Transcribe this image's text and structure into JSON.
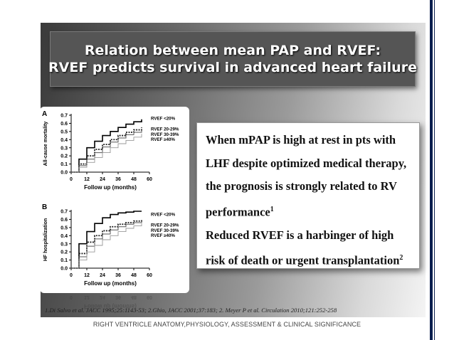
{
  "slide": {
    "title_line1": "Relation between mean PAP and RVEF:",
    "title_line2": "RVEF predicts survival in advanced heart failure",
    "body": [
      "When mPAP is high at rest in pts with",
      "LHF despite optimized medical therapy,",
      "the prognosis is strongly related to RV",
      "performance",
      "Reduced RVEF is a harbinger of high",
      "risk of death or urgent transplantation"
    ],
    "sup1": "1",
    "sup2": "2",
    "citation": "1.Di Salvo et al. JACC 1995;25:1143-53; 2.Ghio, JACC 2001;37:183; 2. Meyer P et al. Circulation 2010;121:252-258",
    "footer": "RIGHT VENTRICLE  ANATOMY,PHYSIOLOGY, ASSESSMENT & CLINICAL SIGNIFICANCE"
  },
  "colors": {
    "title_bg": "#555555",
    "rule": "#0b1e4e"
  },
  "chart_data": [
    {
      "type": "line",
      "panel": "A",
      "ylabel": "All-cause mortality",
      "xlabel": "",
      "yticks": [
        "0.0",
        "0.1",
        "0.2",
        "0.3",
        "0.4",
        "0.5",
        "0.6",
        "0.7"
      ],
      "xticks": [
        "0",
        "12",
        "24",
        "36",
        "48",
        "60"
      ],
      "ylim": [
        0,
        0.7
      ],
      "xlim": [
        0,
        60
      ],
      "series": [
        {
          "name": "RVEF <20%",
          "x": [
            0,
            6,
            12,
            18,
            24,
            30,
            36,
            42,
            48,
            54
          ],
          "y": [
            0,
            0.16,
            0.3,
            0.38,
            0.45,
            0.5,
            0.55,
            0.59,
            0.62,
            0.65
          ]
        },
        {
          "name": "RVEF 20-29%",
          "x": [
            0,
            6,
            12,
            18,
            24,
            30,
            36,
            42,
            48,
            54
          ],
          "y": [
            0,
            0.1,
            0.2,
            0.28,
            0.34,
            0.4,
            0.45,
            0.49,
            0.52,
            0.55
          ]
        },
        {
          "name": "RVEF 30-39%",
          "x": [
            0,
            6,
            12,
            18,
            24,
            30,
            36,
            42,
            48,
            54
          ],
          "y": [
            0,
            0.08,
            0.16,
            0.24,
            0.31,
            0.37,
            0.42,
            0.46,
            0.49,
            0.52
          ]
        },
        {
          "name": "RVEF ≥40%",
          "x": [
            0,
            6,
            12,
            18,
            24,
            30,
            36,
            42,
            48,
            54
          ],
          "y": [
            0,
            0.06,
            0.12,
            0.18,
            0.24,
            0.3,
            0.35,
            0.39,
            0.43,
            0.47
          ]
        }
      ]
    },
    {
      "type": "line",
      "panel": "B",
      "ylabel": "HF hospitalization",
      "xlabel": "Follow up (months)",
      "yticks": [
        "0.0",
        "0.1",
        "0.2",
        "0.3",
        "0.4",
        "0.5",
        "0.6",
        "0.7"
      ],
      "xticks": [
        "0",
        "12",
        "24",
        "36",
        "48",
        "60"
      ],
      "ylim": [
        0,
        0.7
      ],
      "xlim": [
        0,
        60
      ],
      "series": [
        {
          "name": "RVEF <20%",
          "x": [
            0,
            6,
            12,
            18,
            24,
            30,
            36,
            42,
            48,
            54
          ],
          "y": [
            0,
            0.3,
            0.45,
            0.55,
            0.62,
            0.66,
            0.68,
            0.69,
            0.7,
            0.7
          ]
        },
        {
          "name": "RVEF 20-29%",
          "x": [
            0,
            6,
            12,
            18,
            24,
            30,
            36,
            42,
            48,
            54
          ],
          "y": [
            0,
            0.18,
            0.32,
            0.4,
            0.46,
            0.51,
            0.54,
            0.56,
            0.58,
            0.6
          ]
        },
        {
          "name": "RVEF 30-39%",
          "x": [
            0,
            6,
            12,
            18,
            24,
            30,
            36,
            42,
            48,
            54
          ],
          "y": [
            0,
            0.14,
            0.27,
            0.36,
            0.42,
            0.47,
            0.51,
            0.54,
            0.56,
            0.58
          ]
        },
        {
          "name": "RVEF ≥40%",
          "x": [
            0,
            6,
            12,
            18,
            24,
            30,
            36,
            42,
            48,
            54
          ],
          "y": [
            0,
            0.1,
            0.2,
            0.28,
            0.35,
            0.4,
            0.45,
            0.49,
            0.52,
            0.55
          ]
        }
      ]
    }
  ],
  "chart_extra": {
    "xlabel_a": "Follow up (months)"
  }
}
